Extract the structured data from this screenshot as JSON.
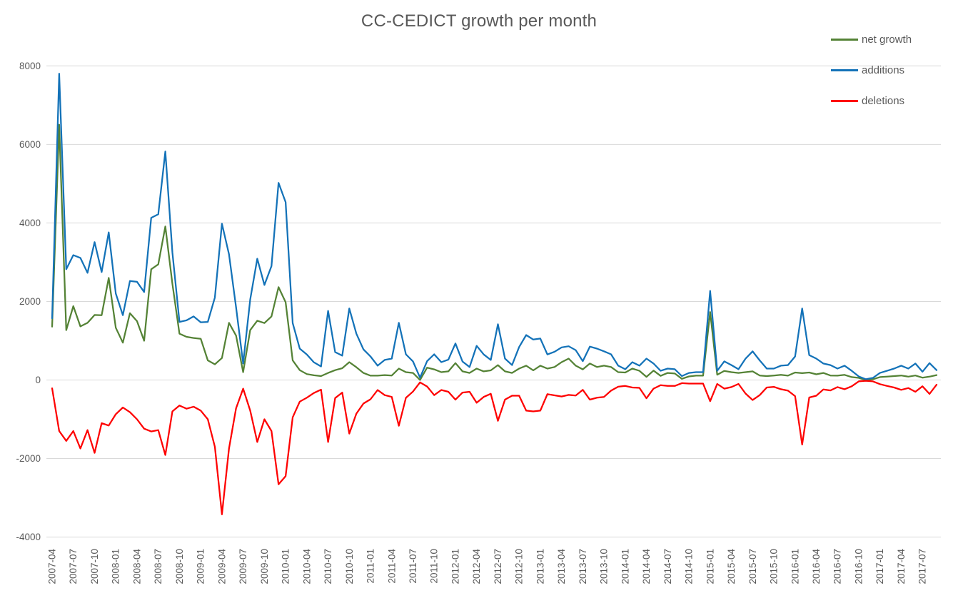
{
  "title": "CC-CEDICT growth per month",
  "axis": {
    "y_tick_labels": [
      "8000",
      "6000",
      "4000",
      "2000",
      "0",
      "-2000",
      "-4000"
    ],
    "text_color": "#595959",
    "grid_color": "#d9d9d9"
  },
  "chart_data": {
    "type": "line",
    "title": "CC-CEDICT growth per month",
    "xlabel": "",
    "ylabel": "",
    "ylim": [
      -4000,
      8000
    ],
    "y_ticks": [
      8000,
      6000,
      4000,
      2000,
      0,
      -2000,
      -4000
    ],
    "x_tick_step": 3,
    "grid": "horizontal",
    "legend_position": "top-right",
    "categories": [
      "2007-04",
      "2007-05",
      "2007-06",
      "2007-07",
      "2007-08",
      "2007-09",
      "2007-10",
      "2007-11",
      "2007-12",
      "2008-01",
      "2008-02",
      "2008-03",
      "2008-04",
      "2008-05",
      "2008-06",
      "2008-07",
      "2008-08",
      "2008-09",
      "2008-10",
      "2008-11",
      "2008-12",
      "2009-01",
      "2009-02",
      "2009-03",
      "2009-04",
      "2009-05",
      "2009-06",
      "2009-07",
      "2009-08",
      "2009-09",
      "2009-10",
      "2009-11",
      "2009-12",
      "2010-01",
      "2010-02",
      "2010-03",
      "2010-04",
      "2010-05",
      "2010-06",
      "2010-07",
      "2010-08",
      "2010-09",
      "2010-10",
      "2010-11",
      "2010-12",
      "2011-01",
      "2011-02",
      "2011-03",
      "2011-04",
      "2011-05",
      "2011-06",
      "2011-07",
      "2011-08",
      "2011-09",
      "2011-10",
      "2011-11",
      "2011-12",
      "2012-01",
      "2012-02",
      "2012-03",
      "2012-04",
      "2012-05",
      "2012-06",
      "2012-07",
      "2012-08",
      "2012-09",
      "2012-10",
      "2012-11",
      "2012-12",
      "2013-01",
      "2013-02",
      "2013-03",
      "2013-04",
      "2013-05",
      "2013-06",
      "2013-07",
      "2013-08",
      "2013-09",
      "2013-10",
      "2013-11",
      "2013-12",
      "2014-01",
      "2014-02",
      "2014-03",
      "2014-04",
      "2014-05",
      "2014-06",
      "2014-07",
      "2014-08",
      "2014-09",
      "2014-10",
      "2014-11",
      "2014-12",
      "2015-01",
      "2015-02",
      "2015-03",
      "2015-04",
      "2015-05",
      "2015-06",
      "2015-07",
      "2015-08",
      "2015-09",
      "2015-10",
      "2015-11",
      "2015-12",
      "2016-01",
      "2016-02",
      "2016-03",
      "2016-04",
      "2016-05",
      "2016-06",
      "2016-07",
      "2016-08",
      "2016-09",
      "2016-10",
      "2016-11",
      "2016-12",
      "2017-01",
      "2017-02",
      "2017-03",
      "2017-04",
      "2017-05",
      "2017-06",
      "2017-07",
      "2017-08",
      "2017-09"
    ],
    "series": [
      {
        "name": "net growth",
        "color": "#548235",
        "values": [
          1360,
          6500,
          1270,
          1880,
          1365,
          1455,
          1655,
          1650,
          2600,
          1330,
          950,
          1700,
          1500,
          1000,
          2820,
          2945,
          3910,
          2450,
          1180,
          1100,
          1070,
          1050,
          500,
          400,
          560,
          1455,
          1130,
          200,
          1270,
          1510,
          1450,
          1620,
          2365,
          1980,
          500,
          250,
          150,
          120,
          100,
          180,
          250,
          300,
          455,
          325,
          180,
          110,
          110,
          125,
          115,
          290,
          200,
          180,
          0,
          315,
          270,
          200,
          220,
          430,
          220,
          180,
          290,
          220,
          245,
          380,
          220,
          180,
          290,
          365,
          245,
          365,
          290,
          330,
          455,
          545,
          365,
          270,
          420,
          330,
          365,
          330,
          200,
          190,
          290,
          235,
          80,
          240,
          105,
          180,
          165,
          30,
          90,
          110,
          110,
          1730,
          135,
          230,
          200,
          180,
          200,
          220,
          115,
          100,
          115,
          130,
          110,
          190,
          175,
          190,
          145,
          180,
          115,
          110,
          130,
          75,
          55,
          0,
          20,
          75,
          85,
          100,
          115,
          85,
          115,
          60,
          85,
          125
        ]
      },
      {
        "name": "additions",
        "color": "#1372b8",
        "values": [
          1570,
          7800,
          2820,
          3180,
          3110,
          2730,
          3510,
          2750,
          3760,
          2200,
          1650,
          2520,
          2500,
          2240,
          4130,
          4220,
          5820,
          3250,
          1480,
          1520,
          1620,
          1470,
          1480,
          2100,
          3980,
          3200,
          1850,
          420,
          2050,
          3090,
          2420,
          2900,
          5020,
          4530,
          1450,
          800,
          650,
          450,
          345,
          1760,
          710,
          620,
          1820,
          1180,
          780,
          600,
          365,
          510,
          545,
          1455,
          655,
          475,
          60,
          480,
          655,
          455,
          520,
          930,
          470,
          330,
          870,
          650,
          510,
          1420,
          545,
          380,
          840,
          1145,
          1030,
          1055,
          650,
          720,
          830,
          860,
          760,
          480,
          850,
          800,
          730,
          655,
          365,
          275,
          455,
          365,
          545,
          420,
          235,
          290,
          275,
          100,
          180,
          200,
          200,
          2270,
          235,
          475,
          380,
          275,
          545,
          730,
          500,
          290,
          290,
          365,
          380,
          600,
          1820,
          635,
          545,
          420,
          380,
          290,
          365,
          235,
          90,
          20,
          55,
          180,
          235,
          290,
          365,
          290,
          420,
          210,
          430,
          250
        ]
      },
      {
        "name": "deletions",
        "color": "#fe0000",
        "values": [
          -210,
          -1300,
          -1550,
          -1300,
          -1745,
          -1275,
          -1855,
          -1100,
          -1160,
          -870,
          -700,
          -820,
          -1000,
          -1240,
          -1310,
          -1275,
          -1910,
          -800,
          -650,
          -730,
          -680,
          -780,
          -1000,
          -1700,
          -3420,
          -1745,
          -720,
          -220,
          -780,
          -1580,
          -1000,
          -1300,
          -2655,
          -2450,
          -950,
          -550,
          -450,
          -330,
          -245,
          -1580,
          -460,
          -320,
          -1365,
          -855,
          -600,
          -490,
          -255,
          -385,
          -430,
          -1165,
          -455,
          -295,
          -60,
          -165,
          -385,
          -255,
          -300,
          -500,
          -320,
          -300,
          -580,
          -430,
          -350,
          -1040,
          -500,
          -400,
          -400,
          -780,
          -800,
          -780,
          -360,
          -390,
          -420,
          -380,
          -395,
          -250,
          -500,
          -450,
          -430,
          -270,
          -170,
          -150,
          -190,
          -200,
          -465,
          -220,
          -130,
          -150,
          -150,
          -80,
          -90,
          -90,
          -90,
          -540,
          -100,
          -220,
          -180,
          -100,
          -345,
          -510,
          -385,
          -190,
          -175,
          -235,
          -270,
          -410,
          -1645,
          -445,
          -400,
          -240,
          -265,
          -180,
          -235,
          -160,
          -35,
          -20,
          -35,
          -105,
          -150,
          -190,
          -250,
          -205,
          -300,
          -160,
          -355,
          -120
        ]
      }
    ]
  }
}
